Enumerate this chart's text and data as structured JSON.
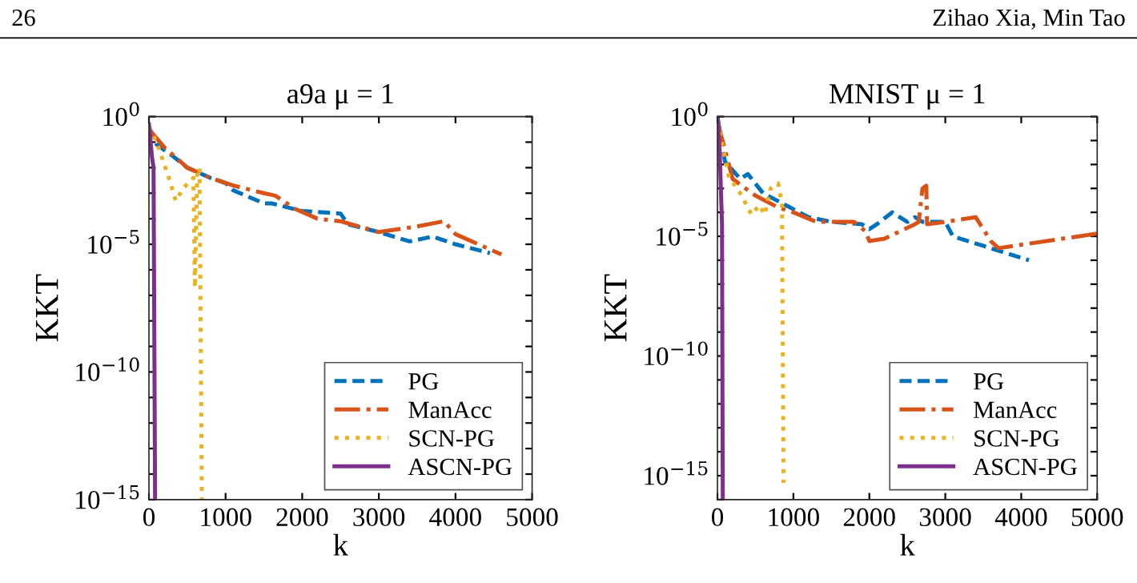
{
  "chart_data": [
    {
      "type": "line",
      "title": "a9a μ = 1",
      "xlabel": "k",
      "ylabel": "KKT",
      "log": "y",
      "grid": false,
      "legend": "bottom right",
      "annotations": [
        "26",
        "Zihao Xia, Min Tao"
      ],
      "xlim": [
        0,
        5000
      ],
      "xticks": [
        0,
        1000,
        2000,
        3000,
        4000,
        5000
      ],
      "ylim": [
        1e-15,
        1
      ],
      "yticks": [
        {
          "value": 1e-15,
          "label": "10$^{−15}$"
        },
        {
          "value": 1e-14,
          "label": null
        },
        {
          "value": 1e-13,
          "label": null
        },
        {
          "value": 1e-12,
          "label": null
        },
        {
          "value": 1e-11,
          "label": null
        },
        {
          "value": 1e-10,
          "label": "10$^{−10}$"
        },
        {
          "value": 1e-09,
          "label": null
        },
        {
          "value": 1e-08,
          "label": null
        },
        {
          "value": 1e-07,
          "label": null
        },
        {
          "value": 1e-06,
          "label": null
        },
        {
          "value": 1e-05,
          "label": "10$^{−5}$"
        },
        {
          "value": 0.0001,
          "label": null
        },
        {
          "value": 0.001,
          "label": null
        },
        {
          "value": 0.01,
          "label": null
        },
        {
          "value": 0.1,
          "label": null
        },
        {
          "value": 1,
          "label": "10$^{0}$"
        }
      ],
      "series": [
        {
          "name": "PG",
          "color": "#0072bd",
          "line_style": "dashed",
          "x": [
            0,
            100,
            300,
            500,
            800,
            1000,
            1100,
            1500,
            1600,
            2000,
            2500,
            2600,
            3000,
            3400,
            3700,
            4000,
            4450
          ],
          "values": [
            0.4,
            0.08,
            0.03,
            0.01,
            0.004,
            0.0025,
            0.0013,
            0.0004,
            0.0004,
            0.0002,
            0.00016,
            6e-05,
            3e-05,
            1.3e-05,
            2e-05,
            1e-05,
            4.5e-06
          ]
        },
        {
          "name": "ManAcc",
          "color": "#d95319",
          "line_style": "dashdot",
          "x": [
            0,
            200,
            500,
            800,
            1100,
            1500,
            1650,
            1900,
            2200,
            2500,
            3000,
            3500,
            3850,
            4000,
            4600
          ],
          "values": [
            0.32,
            0.063,
            0.01,
            0.004,
            0.002,
            0.001,
            0.0008,
            0.00025,
            0.0001,
            8e-05,
            3e-05,
            5e-05,
            8e-05,
            2.5e-05,
            4e-06
          ]
        },
        {
          "name": "SCN-PG",
          "color": "#edb120",
          "line_style": "dotted",
          "x": [
            0,
            100,
            250,
            350,
            450,
            580,
            600,
            630,
            660,
            690
          ],
          "values": [
            0.4,
            0.1,
            0.005,
            0.0005,
            0.0016,
            0.004,
            2e-07,
            0.0063,
            0.01,
            1e-15
          ]
        },
        {
          "name": "ASCN-PG",
          "color": "#7e2f8e",
          "line_style": "solid",
          "x": [
            0,
            40,
            60,
            80
          ],
          "values": [
            0.5,
            0.025,
            0.01,
            1e-15
          ]
        }
      ]
    },
    {
      "type": "line",
      "title": "MNIST μ = 1",
      "xlabel": "k",
      "ylabel": "KKT",
      "log": "y",
      "grid": false,
      "legend": "bottom right",
      "xlim": [
        0,
        5000
      ],
      "xticks": [
        0,
        1000,
        2000,
        3000,
        4000,
        5000
      ],
      "ylim": [
        1e-16,
        1
      ],
      "yticks": [
        {
          "value": 1e-16,
          "label": null
        },
        {
          "value": 1e-15,
          "label": "10$^{−15}$"
        },
        {
          "value": 1e-14,
          "label": null
        },
        {
          "value": 1e-13,
          "label": null
        },
        {
          "value": 1e-12,
          "label": null
        },
        {
          "value": 1e-11,
          "label": null
        },
        {
          "value": 1e-10,
          "label": "10$^{−10}$"
        },
        {
          "value": 1e-09,
          "label": null
        },
        {
          "value": 1e-08,
          "label": null
        },
        {
          "value": 1e-07,
          "label": null
        },
        {
          "value": 1e-06,
          "label": null
        },
        {
          "value": 1e-05,
          "label": "10$^{−5}$"
        },
        {
          "value": 0.0001,
          "label": null
        },
        {
          "value": 0.001,
          "label": null
        },
        {
          "value": 0.01,
          "label": null
        },
        {
          "value": 0.1,
          "label": null
        },
        {
          "value": 1,
          "label": "10$^{0}$"
        }
      ],
      "series": [
        {
          "name": "PG",
          "color": "#0072bd",
          "line_style": "dashed",
          "x": [
            0,
            100,
            300,
            400,
            600,
            900,
            1200,
            1500,
            1900,
            2000,
            2100,
            2300,
            2500,
            2600,
            2700,
            3000,
            3100,
            3500,
            4100
          ],
          "values": [
            1,
            0.013,
            0.0025,
            0.004,
            0.00063,
            0.0002,
            6.3e-05,
            4e-05,
            3.2e-05,
            2e-05,
            3.2e-05,
            0.0001,
            4e-05,
            6.3e-05,
            4e-05,
            4e-05,
            1e-05,
            4e-06,
            1e-06
          ]
        },
        {
          "name": "ManAcc",
          "color": "#d95319",
          "line_style": "dashdot",
          "x": [
            0,
            200,
            500,
            800,
            1000,
            1300,
            1800,
            1950,
            2000,
            2200,
            2600,
            2650,
            2700,
            2750,
            2760,
            3000,
            3400,
            3600,
            3700,
            5000
          ],
          "values": [
            0.63,
            0.0025,
            0.0005,
            0.00016,
            0.0001,
            4e-05,
            4e-05,
            1.6e-05,
            6.3e-06,
            8e-06,
            3.2e-05,
            4e-05,
            0.001,
            0.0013,
            3.2e-05,
            4e-05,
            6.3e-05,
            6.3e-06,
            3.2e-06,
            1.3e-05
          ]
        },
        {
          "name": "SCN-PG",
          "color": "#edb120",
          "line_style": "dotted",
          "x": [
            0,
            150,
            300,
            450,
            550,
            620,
            700,
            800,
            850,
            870
          ],
          "values": [
            0.63,
            0.0032,
            0.00063,
            8e-05,
            0.0002,
            8e-05,
            0.001,
            0.0016,
            0.0002,
            5e-16
          ]
        },
        {
          "name": "ASCN-PG",
          "color": "#7e2f8e",
          "line_style": "solid",
          "x": [
            0,
            30,
            60,
            70
          ],
          "values": [
            1,
            0.032,
            3.2e-05,
            1e-16
          ]
        }
      ]
    }
  ]
}
